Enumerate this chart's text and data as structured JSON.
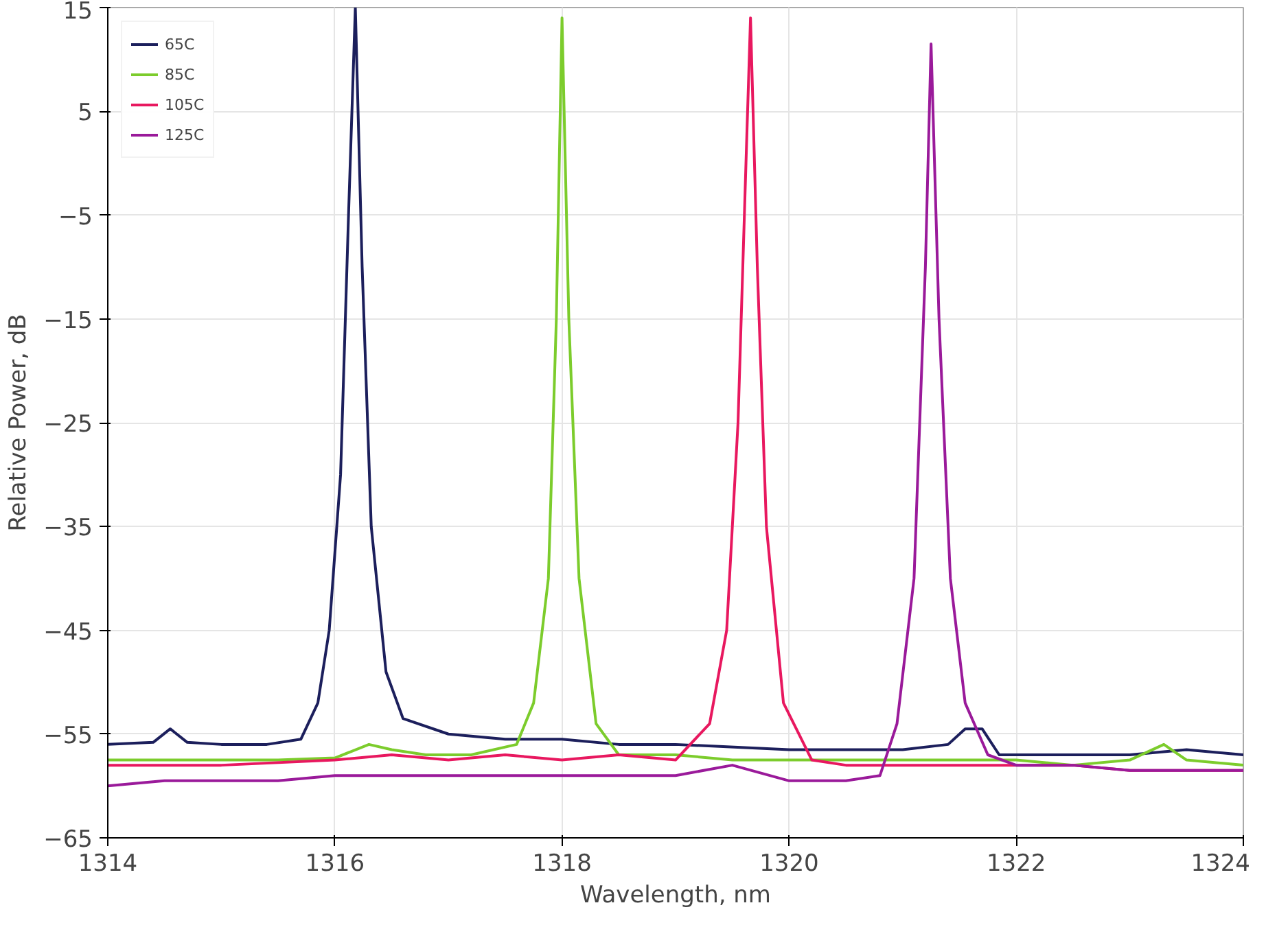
{
  "chart_data": {
    "type": "line",
    "xlabel": "Wavelength, nm",
    "ylabel": "Relative Power, dB",
    "xlim": [
      1314,
      1324
    ],
    "ylim": [
      -65,
      15
    ],
    "xticks": [
      1314,
      1316,
      1318,
      1320,
      1322,
      1324
    ],
    "yticks": [
      -65,
      -55,
      -45,
      -35,
      -25,
      -15,
      -5,
      5,
      15
    ],
    "grid": true,
    "legend": "top left",
    "line_style": "solid",
    "series": [
      {
        "name": "65C",
        "color": "#1c1f5c",
        "x": [
          1314,
          1314.4,
          1314.55,
          1314.7,
          1315,
          1315.4,
          1315.7,
          1315.85,
          1315.95,
          1316.05,
          1316.12,
          1316.18,
          1316.24,
          1316.32,
          1316.45,
          1316.6,
          1317,
          1317.5,
          1318,
          1318.5,
          1319,
          1320,
          1320.5,
          1321,
          1321.4,
          1321.55,
          1321.7,
          1321.85,
          1322,
          1322.5,
          1323,
          1323.5,
          1324
        ],
        "values": [
          -56,
          -55.8,
          -54.5,
          -55.8,
          -56,
          -56,
          -55.5,
          -52,
          -45,
          -30,
          -5,
          15,
          -10,
          -35,
          -49,
          -53.5,
          -55,
          -55.5,
          -55.5,
          -56,
          -56,
          -56.5,
          -56.5,
          -56.5,
          -56,
          -54.5,
          -54.5,
          -57,
          -57,
          -57,
          -57,
          -56.5,
          -57
        ]
      },
      {
        "name": "85C",
        "color": "#7ccc2c",
        "x": [
          1314,
          1314.5,
          1315,
          1315.5,
          1316,
          1316.3,
          1316.5,
          1316.8,
          1317.2,
          1317.6,
          1317.75,
          1317.88,
          1317.95,
          1318,
          1318.06,
          1318.15,
          1318.3,
          1318.5,
          1319,
          1319.5,
          1320,
          1320.5,
          1321,
          1321.5,
          1322,
          1322.5,
          1323,
          1323.3,
          1323.5,
          1324
        ],
        "values": [
          -57.5,
          -57.5,
          -57.5,
          -57.5,
          -57.3,
          -56,
          -56.5,
          -57,
          -57,
          -56,
          -52,
          -40,
          -15,
          14,
          -15,
          -40,
          -54,
          -57,
          -57,
          -57.5,
          -57.5,
          -57.5,
          -57.5,
          -57.5,
          -57.5,
          -58,
          -57.5,
          -56,
          -57.5,
          -58
        ]
      },
      {
        "name": "105C",
        "color": "#e8185f",
        "x": [
          1314,
          1315,
          1316,
          1316.5,
          1317,
          1317.5,
          1318,
          1318.5,
          1319,
          1319.3,
          1319.45,
          1319.55,
          1319.62,
          1319.66,
          1319.72,
          1319.8,
          1319.95,
          1320.2,
          1320.5,
          1321,
          1321.5,
          1322,
          1322.5,
          1323,
          1323.5,
          1324
        ],
        "values": [
          -58,
          -58,
          -57.5,
          -57,
          -57.5,
          -57,
          -57.5,
          -57,
          -57.5,
          -54,
          -45,
          -25,
          0,
          14,
          -10,
          -35,
          -52,
          -57.5,
          -58,
          -58,
          -58,
          -58,
          -58,
          -58.5,
          -58.5,
          -58.5
        ]
      },
      {
        "name": "125C",
        "color": "#9a1a9a",
        "x": [
          1314,
          1314.5,
          1315,
          1315.5,
          1316,
          1316.5,
          1317,
          1317.5,
          1318,
          1318.5,
          1319,
          1319.5,
          1320,
          1320.5,
          1320.8,
          1320.95,
          1321.1,
          1321.2,
          1321.25,
          1321.32,
          1321.42,
          1321.55,
          1321.75,
          1322,
          1322.5,
          1323,
          1323.5,
          1324
        ],
        "values": [
          -60,
          -59.5,
          -59.5,
          -59.5,
          -59,
          -59,
          -59,
          -59,
          -59,
          -59,
          -59,
          -58,
          -59.5,
          -59.5,
          -59,
          -54,
          -40,
          -10,
          11.5,
          -15,
          -40,
          -52,
          -57,
          -58,
          -58,
          -58.5,
          -58.5,
          -58.5
        ]
      }
    ]
  }
}
